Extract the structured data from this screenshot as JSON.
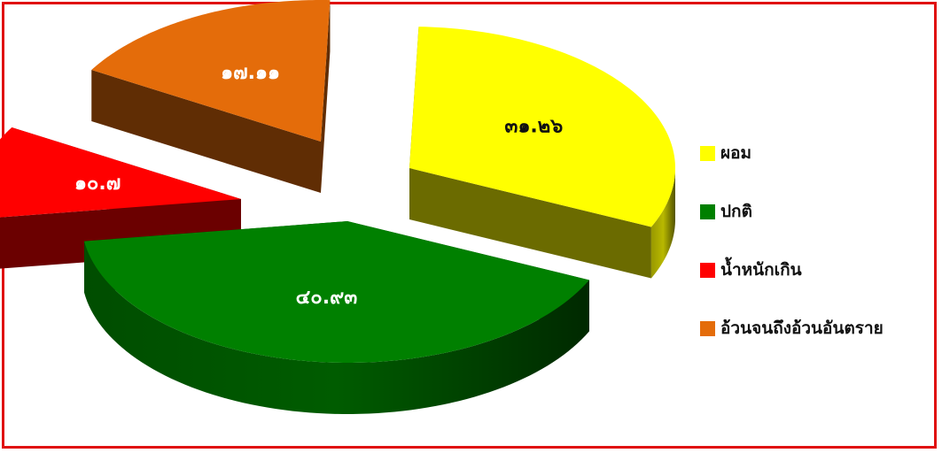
{
  "chart_data": {
    "type": "pie",
    "style": "3d-exploded",
    "slices": [
      {
        "label": "ผอม",
        "value": 31.26,
        "value_label": "๓๑.๒๖",
        "color": "#ffff00",
        "label_color": "#111111"
      },
      {
        "label": "ปกติ",
        "value": 40.93,
        "value_label": "๔๐.๙๓",
        "color": "#008000",
        "label_color": "#ffffff"
      },
      {
        "label": "น้ำหนักเกิน",
        "value": 10.7,
        "value_label": "๑๐.๗",
        "color": "#ff0000",
        "label_color": "#ffffff"
      },
      {
        "label": "อ้วนจนถึงอ้วนอันตราย",
        "value": 17.11,
        "value_label": "๑๗.๑๑",
        "color": "#e46c0a",
        "label_color": "#ffffff"
      }
    ],
    "legend_position": "right"
  },
  "colors": {
    "frame_border": "#e01010",
    "background": "#ffffff"
  }
}
